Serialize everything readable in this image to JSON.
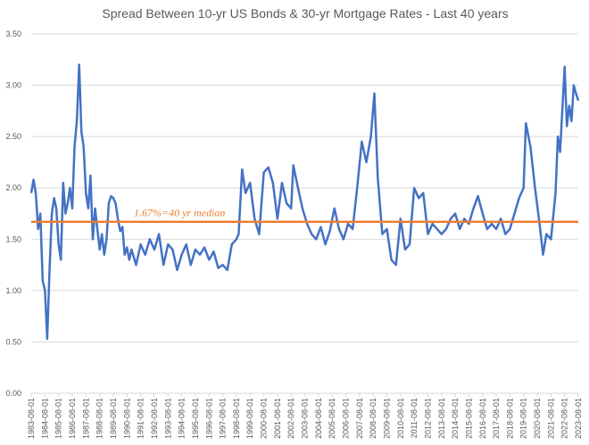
{
  "chart_data": {
    "type": "line",
    "title": "Spread Between 10-yr US Bonds & 30-yr Mortgage Rates - Last 40 years",
    "x": [
      "1983-08-01",
      "1983-10-01",
      "1983-12-01",
      "1984-02-01",
      "1984-04-01",
      "1984-06-01",
      "1984-08-01",
      "1984-10-01",
      "1984-12-01",
      "1985-02-01",
      "1985-04-01",
      "1985-06-01",
      "1985-08-01",
      "1985-10-01",
      "1985-12-01",
      "1986-02-01",
      "1986-04-01",
      "1986-06-01",
      "1986-08-01",
      "1986-10-01",
      "1986-12-01",
      "1987-02-01",
      "1987-03-01",
      "1987-04-01",
      "1987-06-01",
      "1987-08-01",
      "1987-10-01",
      "1987-12-01",
      "1988-02-01",
      "1988-04-01",
      "1988-06-01",
      "1988-08-01",
      "1988-10-01",
      "1988-12-01",
      "1989-02-01",
      "1989-04-01",
      "1989-06-01",
      "1989-08-01",
      "1989-10-01",
      "1989-12-01",
      "1990-02-01",
      "1990-04-01",
      "1990-06-01",
      "1990-08-01",
      "1990-10-01",
      "1990-12-01",
      "1991-04-01",
      "1991-08-01",
      "1991-12-01",
      "1992-04-01",
      "1992-08-01",
      "1992-12-01",
      "1993-04-01",
      "1993-08-01",
      "1993-12-01",
      "1994-04-01",
      "1994-08-01",
      "1994-12-01",
      "1995-04-01",
      "1995-08-01",
      "1995-12-01",
      "1996-04-01",
      "1996-08-01",
      "1996-12-01",
      "1997-04-01",
      "1997-08-01",
      "1997-12-01",
      "1998-04-01",
      "1998-08-01",
      "1998-10-01",
      "1999-01-01",
      "1999-04-01",
      "1999-08-01",
      "1999-12-01",
      "2000-04-01",
      "2000-08-01",
      "2000-12-01",
      "2001-04-01",
      "2001-08-01",
      "2001-12-01",
      "2002-04-01",
      "2002-08-01",
      "2002-10-01",
      "2003-02-01",
      "2003-06-01",
      "2003-10-01",
      "2004-02-01",
      "2004-06-01",
      "2004-10-01",
      "2005-02-01",
      "2005-06-01",
      "2005-10-01",
      "2006-02-01",
      "2006-06-01",
      "2006-10-01",
      "2007-02-01",
      "2007-06-01",
      "2007-10-01",
      "2008-02-01",
      "2008-06-01",
      "2008-09-01",
      "2008-12-01",
      "2009-04-01",
      "2009-08-01",
      "2009-12-01",
      "2010-04-01",
      "2010-08-01",
      "2010-12-01",
      "2011-04-01",
      "2011-08-01",
      "2011-12-01",
      "2012-04-01",
      "2012-08-01",
      "2012-12-01",
      "2013-04-01",
      "2013-08-01",
      "2013-12-01",
      "2014-04-01",
      "2014-08-01",
      "2014-12-01",
      "2015-04-01",
      "2015-08-01",
      "2015-12-01",
      "2016-04-01",
      "2016-08-01",
      "2016-12-01",
      "2017-04-01",
      "2017-08-01",
      "2017-12-01",
      "2018-04-01",
      "2018-08-01",
      "2018-12-01",
      "2019-04-01",
      "2019-08-01",
      "2019-10-01",
      "2020-02-01",
      "2020-06-01",
      "2020-10-01",
      "2021-01-01",
      "2021-04-01",
      "2021-08-01",
      "2021-12-01",
      "2022-02-01",
      "2022-04-01",
      "2022-08-01",
      "2022-10-01",
      "2022-12-01",
      "2023-02-01",
      "2023-04-01",
      "2023-06-01",
      "2023-08-01"
    ],
    "values": [
      1.95,
      2.08,
      1.95,
      1.6,
      1.75,
      1.1,
      1.0,
      0.53,
      1.2,
      1.75,
      1.9,
      1.8,
      1.45,
      1.3,
      2.05,
      1.75,
      1.85,
      2.0,
      1.8,
      2.4,
      2.65,
      3.2,
      2.9,
      2.55,
      2.4,
      1.95,
      1.8,
      2.12,
      1.5,
      1.8,
      1.6,
      1.4,
      1.55,
      1.35,
      1.5,
      1.85,
      1.92,
      1.9,
      1.85,
      1.7,
      1.58,
      1.62,
      1.35,
      1.42,
      1.3,
      1.4,
      1.25,
      1.45,
      1.35,
      1.5,
      1.4,
      1.55,
      1.25,
      1.45,
      1.4,
      1.2,
      1.35,
      1.45,
      1.25,
      1.4,
      1.35,
      1.42,
      1.3,
      1.38,
      1.22,
      1.25,
      1.2,
      1.45,
      1.5,
      1.55,
      2.18,
      1.95,
      2.05,
      1.7,
      1.55,
      2.15,
      2.2,
      2.05,
      1.7,
      2.05,
      1.85,
      1.8,
      2.22,
      2.0,
      1.8,
      1.65,
      1.55,
      1.5,
      1.62,
      1.45,
      1.58,
      1.8,
      1.6,
      1.5,
      1.65,
      1.6,
      2.0,
      2.45,
      2.25,
      2.5,
      2.92,
      2.1,
      1.55,
      1.6,
      1.3,
      1.25,
      1.7,
      1.4,
      1.45,
      2.0,
      1.9,
      1.95,
      1.55,
      1.65,
      1.6,
      1.55,
      1.6,
      1.7,
      1.75,
      1.6,
      1.7,
      1.65,
      1.8,
      1.92,
      1.75,
      1.6,
      1.65,
      1.6,
      1.7,
      1.55,
      1.6,
      1.75,
      1.9,
      2.0,
      2.63,
      2.4,
      2.0,
      1.65,
      1.35,
      1.55,
      1.5,
      1.95,
      2.5,
      2.35,
      3.18,
      2.6,
      2.8,
      2.65,
      3.0,
      2.92,
      2.85
    ],
    "color": "#4472c4",
    "xlim": [
      "1983-08-01",
      "2023-08-01"
    ],
    "xticks": [
      "1983-08-01",
      "1984-08-01",
      "1985-08-01",
      "1986-08-01",
      "1987-08-01",
      "1988-08-01",
      "1989-08-01",
      "1990-08-01",
      "1991-08-01",
      "1992-08-01",
      "1993-08-01",
      "1994-08-01",
      "1995-08-01",
      "1996-08-01",
      "1997-08-01",
      "1998-08-01",
      "1999-08-01",
      "2000-08-01",
      "2001-08-01",
      "2002-08-01",
      "2003-08-01",
      "2004-08-01",
      "2005-08-01",
      "2006-08-01",
      "2007-08-01",
      "2008-08-01",
      "2009-08-01",
      "2010-08-01",
      "2011-08-01",
      "2012-08-01",
      "2013-08-01",
      "2014-08-01",
      "2015-08-01",
      "2016-08-01",
      "2017-08-01",
      "2018-08-01",
      "2019-08-01",
      "2020-08-01",
      "2021-08-01",
      "2022-08-01",
      "2023-08-01"
    ],
    "ylim": [
      0,
      3.5
    ],
    "yticks": [
      {
        "value": 0,
        "label": "0.00"
      },
      {
        "value": 0.5,
        "label": "0.50"
      },
      {
        "value": 1,
        "label": "1.00"
      },
      {
        "value": 1.5,
        "label": "1.50"
      },
      {
        "value": 2,
        "label": "2.00"
      },
      {
        "value": 2.5,
        "label": "2.50"
      },
      {
        "value": 3,
        "label": "3.00"
      },
      {
        "value": 3.5,
        "label": "3.50"
      }
    ],
    "grid": true,
    "median": {
      "value": 1.67,
      "label": "1.67%=40 yr median",
      "color": "#ed7d31"
    }
  }
}
